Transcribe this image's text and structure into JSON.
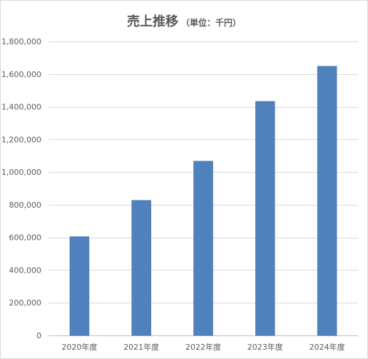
{
  "chart_data": {
    "type": "bar",
    "title": "売上推移",
    "subtitle": "（単位：千円）",
    "categories": [
      "2020年度",
      "2021年度",
      "2022年度",
      "2023年度",
      "2024年度"
    ],
    "series": [
      {
        "values": [
          605000,
          827000,
          1067000,
          1433000,
          1648000
        ]
      }
    ],
    "ylim": [
      0,
      1800000
    ],
    "yticks": [
      0,
      200000,
      400000,
      600000,
      800000,
      1000000,
      1200000,
      1400000,
      1600000,
      1800000
    ],
    "ytick_labels": [
      "0",
      "200,000",
      "400,000",
      "600,000",
      "800,000",
      "1,000,000",
      "1,200,000",
      "1,400,000",
      "1,600,000",
      "1,800,000"
    ],
    "grid": true,
    "legend": "none",
    "bar_color": "#4f81bd",
    "grid_color": "#d9d9d9",
    "axis_color": "#bfbfbf"
  }
}
